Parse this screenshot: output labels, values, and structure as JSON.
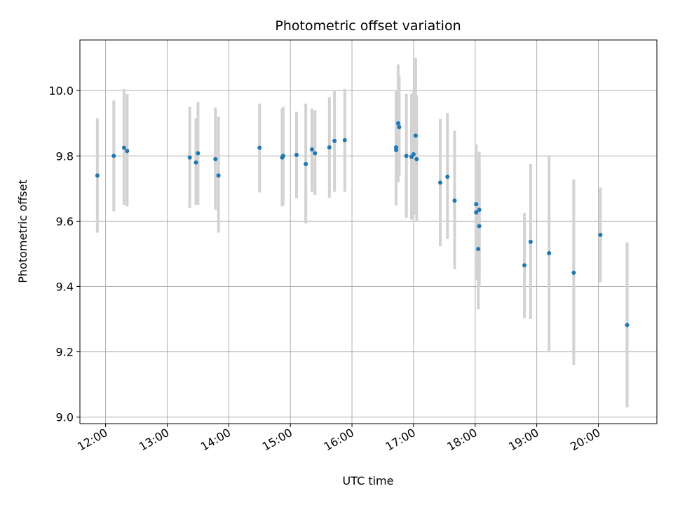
{
  "chart_data": {
    "type": "scatter",
    "title": "Photometric offset variation",
    "xlabel": "UTC time",
    "ylabel": "Photometric offset",
    "xlim": [
      "11:35",
      "20:57"
    ],
    "ylim": [
      8.98,
      10.155
    ],
    "x_ticks": [
      "12:00",
      "13:00",
      "14:00",
      "15:00",
      "16:00",
      "17:00",
      "18:00",
      "19:00",
      "20:00"
    ],
    "y_ticks": [
      "9.0",
      "9.2",
      "9.4",
      "9.6",
      "9.8",
      "10.0"
    ],
    "grid": true,
    "colors": {
      "point": "#1f77b4",
      "errorbar": "#d3d3d3",
      "grid": "#b0b0b0"
    },
    "points": [
      {
        "x": "11:52",
        "y": 9.74,
        "ylow": 9.565,
        "yhigh": 9.915
      },
      {
        "x": "12:08",
        "y": 9.8,
        "ylow": 9.63,
        "yhigh": 9.97
      },
      {
        "x": "12:18",
        "y": 9.825,
        "ylow": 9.65,
        "yhigh": 10.005
      },
      {
        "x": "12:21",
        "y": 9.815,
        "ylow": 9.645,
        "yhigh": 9.99
      },
      {
        "x": "13:22",
        "y": 9.795,
        "ylow": 9.64,
        "yhigh": 9.95
      },
      {
        "x": "13:28",
        "y": 9.78,
        "ylow": 9.65,
        "yhigh": 9.915
      },
      {
        "x": "13:30",
        "y": 9.808,
        "ylow": 9.65,
        "yhigh": 9.965
      },
      {
        "x": "13:47",
        "y": 9.79,
        "ylow": 9.635,
        "yhigh": 9.948
      },
      {
        "x": "13:50",
        "y": 9.74,
        "ylow": 9.565,
        "yhigh": 9.92
      },
      {
        "x": "14:30",
        "y": 9.825,
        "ylow": 9.688,
        "yhigh": 9.96
      },
      {
        "x": "14:52",
        "y": 9.795,
        "ylow": 9.645,
        "yhigh": 9.945
      },
      {
        "x": "14:53",
        "y": 9.8,
        "ylow": 9.65,
        "yhigh": 9.95
      },
      {
        "x": "15:06",
        "y": 9.803,
        "ylow": 9.67,
        "yhigh": 9.935
      },
      {
        "x": "15:15",
        "y": 9.775,
        "ylow": 9.593,
        "yhigh": 9.96
      },
      {
        "x": "15:21",
        "y": 9.82,
        "ylow": 9.69,
        "yhigh": 9.945
      },
      {
        "x": "15:24",
        "y": 9.808,
        "ylow": 9.68,
        "yhigh": 9.94
      },
      {
        "x": "15:38",
        "y": 9.826,
        "ylow": 9.672,
        "yhigh": 9.98
      },
      {
        "x": "15:43",
        "y": 9.846,
        "ylow": 9.69,
        "yhigh": 10.0
      },
      {
        "x": "15:53",
        "y": 9.848,
        "ylow": 9.69,
        "yhigh": 10.005
      },
      {
        "x": "16:43",
        "y": 9.826,
        "ylow": 9.648,
        "yhigh": 10.0
      },
      {
        "x": "16:43",
        "y": 9.818,
        "ylow": 9.73,
        "yhigh": 9.99
      },
      {
        "x": "16:45",
        "y": 9.9,
        "ylow": 9.72,
        "yhigh": 10.08
      },
      {
        "x": "16:46",
        "y": 9.888,
        "ylow": 9.74,
        "yhigh": 10.045
      },
      {
        "x": "16:53",
        "y": 9.8,
        "ylow": 9.61,
        "yhigh": 9.99
      },
      {
        "x": "16:58",
        "y": 9.797,
        "ylow": 9.605,
        "yhigh": 9.99
      },
      {
        "x": "17:00",
        "y": 9.805,
        "ylow": 9.62,
        "yhigh": 10.0
      },
      {
        "x": "17:02",
        "y": 9.862,
        "ylow": 9.62,
        "yhigh": 10.1
      },
      {
        "x": "17:03",
        "y": 9.79,
        "ylow": 9.6,
        "yhigh": 9.985
      },
      {
        "x": "17:26",
        "y": 9.718,
        "ylow": 9.523,
        "yhigh": 9.913
      },
      {
        "x": "17:33",
        "y": 9.736,
        "ylow": 9.545,
        "yhigh": 9.932
      },
      {
        "x": "17:40",
        "y": 9.663,
        "ylow": 9.453,
        "yhigh": 9.877
      },
      {
        "x": "18:01",
        "y": 9.652,
        "ylow": 9.473,
        "yhigh": 9.835
      },
      {
        "x": "18:01",
        "y": 9.627,
        "ylow": 9.42,
        "yhigh": 9.82
      },
      {
        "x": "18:03",
        "y": 9.515,
        "ylow": 9.33,
        "yhigh": 9.79
      },
      {
        "x": "18:04",
        "y": 9.635,
        "ylow": 9.4,
        "yhigh": 9.813
      },
      {
        "x": "18:04",
        "y": 9.585,
        "ylow": 9.43,
        "yhigh": 9.77
      },
      {
        "x": "18:48",
        "y": 9.465,
        "ylow": 9.303,
        "yhigh": 9.625
      },
      {
        "x": "18:54",
        "y": 9.537,
        "ylow": 9.3,
        "yhigh": 9.775
      },
      {
        "x": "19:12",
        "y": 9.502,
        "ylow": 9.203,
        "yhigh": 9.798
      },
      {
        "x": "19:36",
        "y": 9.442,
        "ylow": 9.16,
        "yhigh": 9.728
      },
      {
        "x": "20:02",
        "y": 9.558,
        "ylow": 9.413,
        "yhigh": 9.703
      },
      {
        "x": "20:28",
        "y": 9.282,
        "ylow": 9.03,
        "yhigh": 9.535
      }
    ]
  }
}
